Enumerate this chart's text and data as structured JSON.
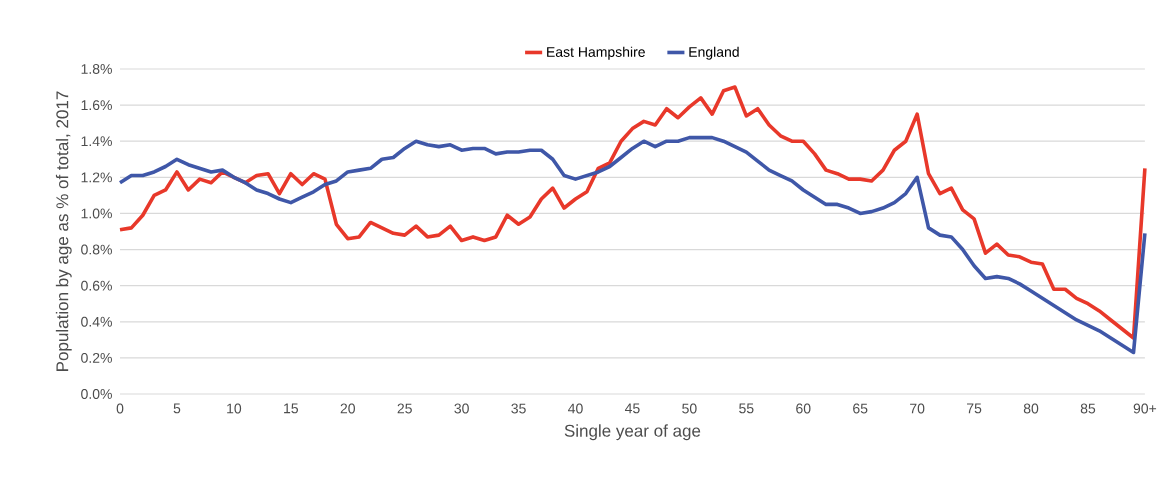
{
  "chart_data": {
    "type": "line",
    "xlabel": "Single year of age",
    "ylabel": "Population by age as % of total, 2017",
    "categories": [
      "0",
      null,
      null,
      null,
      null,
      "5",
      null,
      null,
      null,
      null,
      "10",
      null,
      null,
      null,
      null,
      "15",
      null,
      null,
      null,
      null,
      "20",
      null,
      null,
      null,
      null,
      "25",
      null,
      null,
      null,
      null,
      "30",
      null,
      null,
      null,
      null,
      "35",
      null,
      null,
      null,
      null,
      "40",
      null,
      null,
      null,
      null,
      "45",
      null,
      null,
      null,
      null,
      "50",
      null,
      null,
      null,
      null,
      "55",
      null,
      null,
      null,
      null,
      "60",
      null,
      null,
      null,
      null,
      "65",
      null,
      null,
      null,
      null,
      "70",
      null,
      null,
      null,
      null,
      "75",
      null,
      null,
      null,
      null,
      "80",
      null,
      null,
      null,
      null,
      "85",
      null,
      null,
      null,
      null,
      "90+"
    ],
    "series": [
      {
        "name": "East Hampshire",
        "color": "#e8382a",
        "values": [
          0.91,
          0.92,
          0.99,
          1.1,
          1.13,
          1.23,
          1.13,
          1.19,
          1.17,
          1.23,
          1.2,
          1.17,
          1.21,
          1.22,
          1.11,
          1.22,
          1.16,
          1.22,
          1.19,
          0.94,
          0.86,
          0.87,
          0.95,
          0.92,
          0.89,
          0.88,
          0.93,
          0.87,
          0.88,
          0.93,
          0.85,
          0.87,
          0.85,
          0.87,
          0.99,
          0.94,
          0.98,
          1.08,
          1.14,
          1.03,
          1.08,
          1.12,
          1.25,
          1.28,
          1.4,
          1.47,
          1.51,
          1.49,
          1.58,
          1.53,
          1.59,
          1.64,
          1.55,
          1.68,
          1.7,
          1.54,
          1.58,
          1.49,
          1.43,
          1.4,
          1.4,
          1.33,
          1.24,
          1.22,
          1.19,
          1.19,
          1.18,
          1.24,
          1.35,
          1.4,
          1.55,
          1.22,
          1.11,
          1.14,
          1.02,
          0.97,
          0.78,
          0.83,
          0.77,
          0.76,
          0.73,
          0.72,
          0.58,
          0.58,
          0.53,
          0.5,
          0.46,
          0.41,
          0.36,
          0.31,
          1.25
        ]
      },
      {
        "name": "England",
        "color": "#3f57a8",
        "values": [
          1.17,
          1.21,
          1.21,
          1.23,
          1.26,
          1.3,
          1.27,
          1.25,
          1.23,
          1.24,
          1.2,
          1.17,
          1.13,
          1.11,
          1.08,
          1.06,
          1.09,
          1.12,
          1.16,
          1.18,
          1.23,
          1.24,
          1.25,
          1.3,
          1.31,
          1.36,
          1.4,
          1.38,
          1.37,
          1.38,
          1.35,
          1.36,
          1.36,
          1.33,
          1.34,
          1.34,
          1.35,
          1.35,
          1.3,
          1.21,
          1.19,
          1.21,
          1.23,
          1.26,
          1.31,
          1.36,
          1.4,
          1.37,
          1.4,
          1.4,
          1.42,
          1.42,
          1.42,
          1.4,
          1.37,
          1.34,
          1.29,
          1.24,
          1.21,
          1.18,
          1.13,
          1.09,
          1.05,
          1.05,
          1.03,
          1.0,
          1.01,
          1.03,
          1.06,
          1.11,
          1.2,
          0.92,
          0.88,
          0.87,
          0.8,
          0.71,
          0.64,
          0.65,
          0.64,
          0.61,
          0.57,
          0.53,
          0.49,
          0.45,
          0.41,
          0.38,
          0.35,
          0.31,
          0.27,
          0.23,
          0.89
        ]
      }
    ],
    "ylim": [
      0,
      1.8
    ],
    "yticks": [
      {
        "value": 0,
        "label": "0.0%"
      },
      {
        "value": 0.2,
        "label": "0.2%"
      },
      {
        "value": 0.4,
        "label": "0.4%"
      },
      {
        "value": 0.6,
        "label": "0.6%"
      },
      {
        "value": 0.8,
        "label": "0.8%"
      },
      {
        "value": 1.0,
        "label": "1.0%"
      },
      {
        "value": 1.2,
        "label": "1.2%"
      },
      {
        "value": 1.4,
        "label": "1.4%"
      },
      {
        "value": 1.6,
        "label": "1.6%"
      },
      {
        "value": 1.8,
        "label": "1.8%"
      }
    ],
    "grid": "y",
    "legend": "top",
    "marker": "none",
    "line_style": "solid"
  }
}
